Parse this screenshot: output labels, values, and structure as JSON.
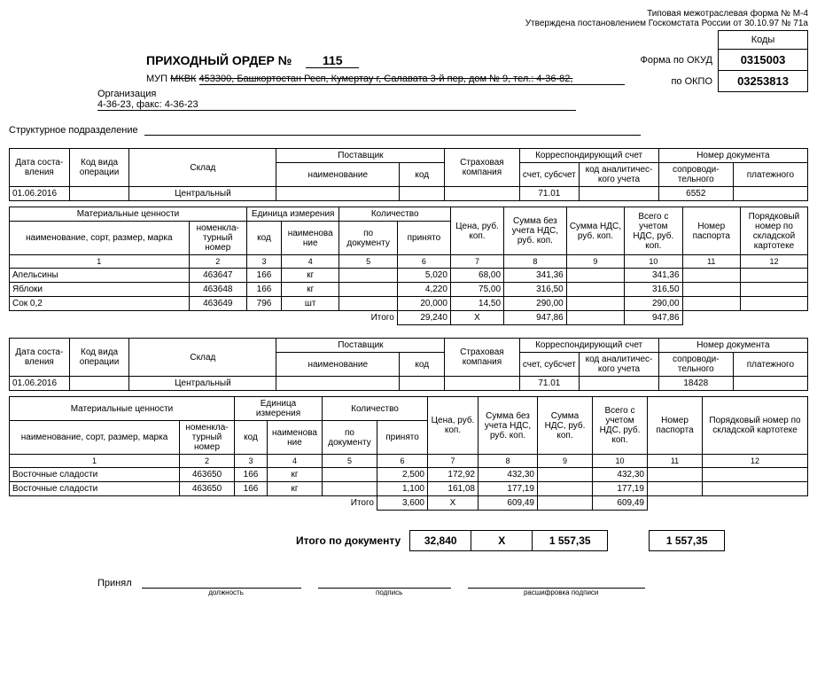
{
  "meta": {
    "form_line": "Типовая межотраслевая форма № М-4",
    "approved_line": "Утверждена постановлением Госкомстата России от 30.10.97 № 71а"
  },
  "codes": {
    "header": "Коды",
    "okud_label": "Форма по ОКУД",
    "okud_value": "0315003",
    "okpo_label": "по ОКПО",
    "okpo_value": "03253813"
  },
  "title": {
    "label": "ПРИХОДНЫЙ ОРДЕР №",
    "number": "115"
  },
  "org": {
    "prefix": "МУП",
    "strike1": "МКВК",
    "strike_rest": "453300, Башкортостан Респ, Кумертау г, Салавата 3-й пер, дом № 9, тел.: 4-36-82,",
    "sub_label": "Организация",
    "sub_text": "4-36-23, факс: 4-36-23"
  },
  "struct_label": "Структурное подразделение",
  "hdr": {
    "date": "Дата соста-вления",
    "op": "Код вида операции",
    "warehouse": "Склад",
    "supplier": "Поставщик",
    "supplier_name": "наименование",
    "supplier_code": "код",
    "insurance": "Страховая компания",
    "corr": "Корреспондирующий счет",
    "acct": "счет, субсчет",
    "anal": "код аналитичес-кого учета",
    "docnum": "Номер документа",
    "accomp": "сопроводи-тельного",
    "pay": "платежного"
  },
  "block1": {
    "info": {
      "date": "01.06.2016",
      "warehouse": "Центральный",
      "acct": "71.01",
      "accomp": "6552"
    },
    "rows": [
      {
        "name": "Апельсины",
        "nomen": "463647",
        "ucode": "166",
        "uname": "кг",
        "qdoc": "",
        "qacc": "5,020",
        "price": "68,00",
        "sum": "341,36",
        "vat": "",
        "total": "341,36",
        "pass": "",
        "ord": ""
      },
      {
        "name": "Яблоки",
        "nomen": "463648",
        "ucode": "166",
        "uname": "кг",
        "qdoc": "",
        "qacc": "4,220",
        "price": "75,00",
        "sum": "316,50",
        "vat": "",
        "total": "316,50",
        "pass": "",
        "ord": ""
      },
      {
        "name": "Сок 0,2",
        "nomen": "463649",
        "ucode": "796",
        "uname": "шт",
        "qdoc": "",
        "qacc": "20,000",
        "price": "14,50",
        "sum": "290,00",
        "vat": "",
        "total": "290,00",
        "pass": "",
        "ord": ""
      }
    ],
    "totals": {
      "label": "Итого",
      "qty": "29,240",
      "x": "Х",
      "sum": "947,86",
      "total": "947,86"
    }
  },
  "block2": {
    "info": {
      "date": "01.06.2016",
      "warehouse": "Центральный",
      "acct": "71.01",
      "accomp": "18428"
    },
    "rows": [
      {
        "name": "Восточные сладости",
        "nomen": "463650",
        "ucode": "166",
        "uname": "кг",
        "qdoc": "",
        "qacc": "2,500",
        "price": "172,92",
        "sum": "432,30",
        "vat": "",
        "total": "432,30",
        "pass": "",
        "ord": ""
      },
      {
        "name": "Восточные сладости",
        "nomen": "463650",
        "ucode": "166",
        "uname": "кг",
        "qdoc": "",
        "qacc": "1,100",
        "price": "161,08",
        "sum": "177,19",
        "vat": "",
        "total": "177,19",
        "pass": "",
        "ord": ""
      }
    ],
    "totals": {
      "label": "Итого",
      "qty": "3,600",
      "x": "Х",
      "sum": "609,49",
      "total": "609,49"
    }
  },
  "items_hdr": {
    "mat": "Материальные ценности",
    "mat_name": "наименование, сорт, размер, марка",
    "nomen": "номенкла-турный номер",
    "unit": "Единица измерения",
    "ucode": "код",
    "uname": "наименова ние",
    "qty": "Количество",
    "qdoc": "по документу",
    "qacc": "принято",
    "price": "Цена, руб. коп.",
    "sum": "Сумма без учета НДС, руб. коп.",
    "vat": "Сумма НДС, руб. коп.",
    "total": "Всего с учетом НДС, руб. коп.",
    "pass": "Номер паспорта",
    "ord": "Порядковый номер по складской картотеке",
    "cols": [
      "1",
      "2",
      "3",
      "4",
      "5",
      "6",
      "7",
      "8",
      "9",
      "10",
      "11",
      "12"
    ]
  },
  "doc_total": {
    "label": "Итого по документу",
    "qty": "32,840",
    "x": "Х",
    "sum": "1 557,35",
    "total": "1 557,35"
  },
  "sign": {
    "accepted": "Принял",
    "cap_pos": "должность",
    "cap_sign": "подпись",
    "cap_name": "расшифровка подписи"
  }
}
